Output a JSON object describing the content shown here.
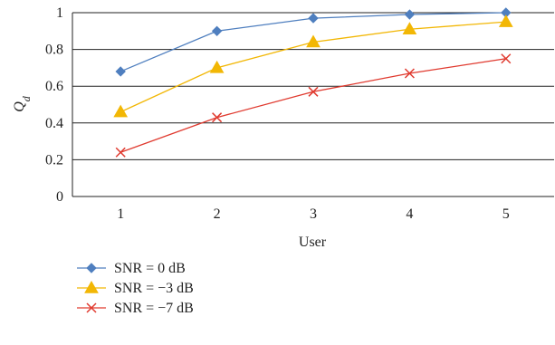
{
  "chart_data": {
    "type": "line",
    "title": "",
    "xlabel": "User",
    "ylabel": "Q_d",
    "x": [
      1,
      2,
      3,
      4,
      5
    ],
    "ylim": [
      0,
      1
    ],
    "yticks": [
      0,
      0.2,
      0.4,
      0.6,
      0.8,
      1
    ],
    "grid": "horizontal",
    "legend_position": "bottom-left",
    "series": [
      {
        "name": "SNR = 0 dB",
        "values": [
          0.68,
          0.9,
          0.97,
          0.99,
          1.0
        ],
        "color": "#4f7fbf",
        "marker": "diamond"
      },
      {
        "name": "SNR = −3 dB",
        "values": [
          0.46,
          0.7,
          0.84,
          0.91,
          0.95
        ],
        "color": "#f2b705",
        "marker": "triangle"
      },
      {
        "name": "SNR = −7 dB",
        "values": [
          0.24,
          0.43,
          0.57,
          0.67,
          0.75
        ],
        "color": "#e03a2f",
        "marker": "x"
      }
    ]
  }
}
